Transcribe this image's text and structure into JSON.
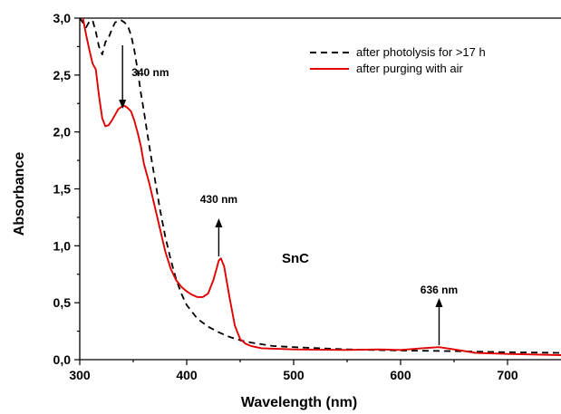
{
  "chart_data": {
    "type": "line",
    "xlabel": "Wavelength (nm)",
    "ylabel": "Absorbance",
    "xlim": [
      300,
      750
    ],
    "ylim": [
      0.0,
      3.0
    ],
    "x_ticks": [
      "300",
      "400",
      "500",
      "600",
      "700"
    ],
    "y_ticks": [
      "0,0",
      "0,5",
      "1,0",
      "1,5",
      "2,0",
      "2,5",
      "3,0"
    ],
    "legend_position": "top-right",
    "grid": false,
    "sample_label": "SnC",
    "series": [
      {
        "name": "after photolysis for >17 h",
        "color": "#000000",
        "style": "dashed",
        "points": [
          [
            300,
            3.0
          ],
          [
            303,
            2.96
          ],
          [
            306,
            2.92
          ],
          [
            309,
            2.97
          ],
          [
            312,
            2.98
          ],
          [
            315,
            2.88
          ],
          [
            318,
            2.75
          ],
          [
            321,
            2.68
          ],
          [
            324,
            2.79
          ],
          [
            327,
            2.83
          ],
          [
            330,
            2.9
          ],
          [
            333,
            2.96
          ],
          [
            336,
            2.98
          ],
          [
            339,
            2.98
          ],
          [
            342,
            2.96
          ],
          [
            345,
            2.93
          ],
          [
            348,
            2.85
          ],
          [
            351,
            2.72
          ],
          [
            354,
            2.55
          ],
          [
            357,
            2.35
          ],
          [
            360,
            2.18
          ],
          [
            363,
            2.0
          ],
          [
            366,
            1.82
          ],
          [
            370,
            1.6
          ],
          [
            375,
            1.32
          ],
          [
            380,
            1.08
          ],
          [
            385,
            0.88
          ],
          [
            390,
            0.71
          ],
          [
            395,
            0.58
          ],
          [
            400,
            0.48
          ],
          [
            410,
            0.36
          ],
          [
            420,
            0.29
          ],
          [
            430,
            0.24
          ],
          [
            440,
            0.2
          ],
          [
            450,
            0.17
          ],
          [
            460,
            0.15
          ],
          [
            480,
            0.12
          ],
          [
            500,
            0.11
          ],
          [
            550,
            0.09
          ],
          [
            600,
            0.08
          ],
          [
            650,
            0.075
          ],
          [
            700,
            0.065
          ],
          [
            750,
            0.06
          ]
        ]
      },
      {
        "name": "after purging with air",
        "color": "#e00000",
        "style": "solid",
        "points": [
          [
            303,
            3.0
          ],
          [
            306,
            2.85
          ],
          [
            309,
            2.72
          ],
          [
            312,
            2.6
          ],
          [
            315,
            2.55
          ],
          [
            318,
            2.32
          ],
          [
            321,
            2.12
          ],
          [
            324,
            2.05
          ],
          [
            327,
            2.06
          ],
          [
            330,
            2.1
          ],
          [
            333,
            2.15
          ],
          [
            336,
            2.2
          ],
          [
            339,
            2.22
          ],
          [
            342,
            2.23
          ],
          [
            345,
            2.21
          ],
          [
            348,
            2.18
          ],
          [
            351,
            2.1
          ],
          [
            354,
            2.0
          ],
          [
            357,
            1.88
          ],
          [
            360,
            1.72
          ],
          [
            365,
            1.55
          ],
          [
            370,
            1.35
          ],
          [
            375,
            1.15
          ],
          [
            380,
            0.95
          ],
          [
            385,
            0.8
          ],
          [
            390,
            0.7
          ],
          [
            395,
            0.64
          ],
          [
            400,
            0.6
          ],
          [
            405,
            0.57
          ],
          [
            410,
            0.55
          ],
          [
            415,
            0.55
          ],
          [
            420,
            0.58
          ],
          [
            425,
            0.7
          ],
          [
            430,
            0.87
          ],
          [
            432,
            0.89
          ],
          [
            435,
            0.82
          ],
          [
            440,
            0.55
          ],
          [
            445,
            0.3
          ],
          [
            450,
            0.18
          ],
          [
            455,
            0.14
          ],
          [
            460,
            0.12
          ],
          [
            470,
            0.1
          ],
          [
            500,
            0.09
          ],
          [
            550,
            0.085
          ],
          [
            580,
            0.09
          ],
          [
            600,
            0.085
          ],
          [
            620,
            0.1
          ],
          [
            636,
            0.11
          ],
          [
            650,
            0.09
          ],
          [
            670,
            0.06
          ],
          [
            700,
            0.05
          ],
          [
            750,
            0.04
          ]
        ]
      }
    ],
    "annotations": [
      {
        "text": "340 nm",
        "x": 340,
        "arrow": "down"
      },
      {
        "text": "430 nm",
        "x": 430,
        "arrow": "up"
      },
      {
        "text": "636 nm",
        "x": 636,
        "arrow": "up"
      }
    ]
  }
}
